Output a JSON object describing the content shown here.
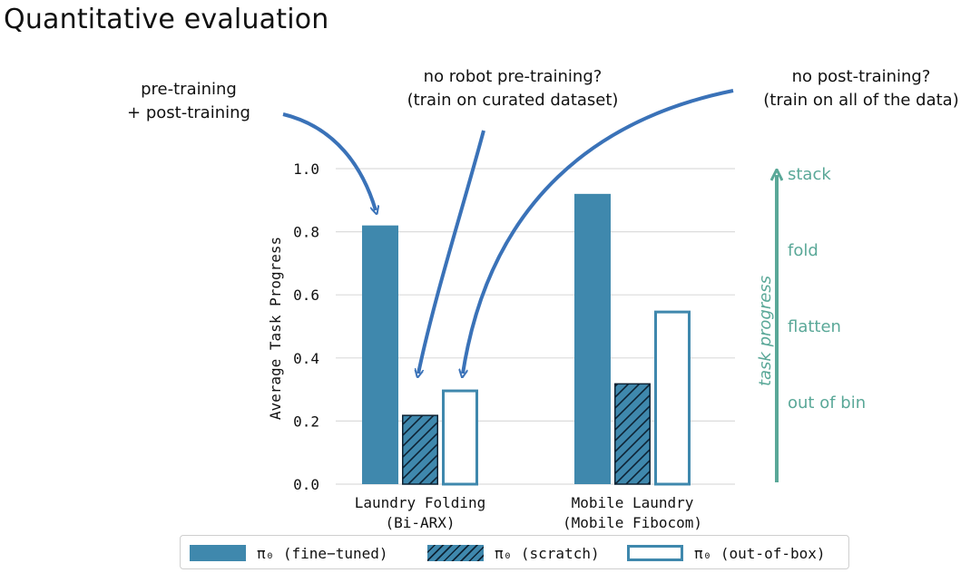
{
  "slide": {
    "title": "Quantitative evaluation"
  },
  "annotations": {
    "pre_post": [
      "pre-training",
      "+ post-training"
    ],
    "no_robot": [
      "no robot pre-training?",
      "(train on curated dataset)"
    ],
    "no_post": [
      "no post-training?",
      "(train on all of the data)"
    ]
  },
  "colors": {
    "fine_tuned": "#3f88ad",
    "scratch": "#3f88ad",
    "out_of_box_edge": "#3f88ad",
    "arrow": "#3a72b8",
    "task_progress": "#5aa898"
  },
  "task_progress_scale": {
    "title": "task progress",
    "levels": [
      "stack",
      "fold",
      "flatten",
      "out of bin"
    ]
  },
  "chart_data": {
    "type": "bar",
    "title": "",
    "xlabel": "",
    "ylabel": "Average Task Progress",
    "ylim": [
      0,
      1.0
    ],
    "yticks": [
      "0.0",
      "0.2",
      "0.4",
      "0.6",
      "0.8",
      "1.0"
    ],
    "grid": true,
    "legend_position": "bottom",
    "categories": [
      [
        "Laundry Folding",
        "(Bi-ARX)"
      ],
      [
        "Mobile Laundry",
        "(Mobile Fibocom)"
      ]
    ],
    "series": [
      {
        "name": "π₀ (fine−tuned)",
        "style": "filled",
        "values": [
          0.82,
          0.92
        ]
      },
      {
        "name": "π₀ (scratch)",
        "style": "hatched",
        "values": [
          0.22,
          0.32
        ]
      },
      {
        "name": "π₀ (out-of-box)",
        "style": "outline",
        "values": [
          0.3,
          0.55
        ]
      }
    ]
  }
}
